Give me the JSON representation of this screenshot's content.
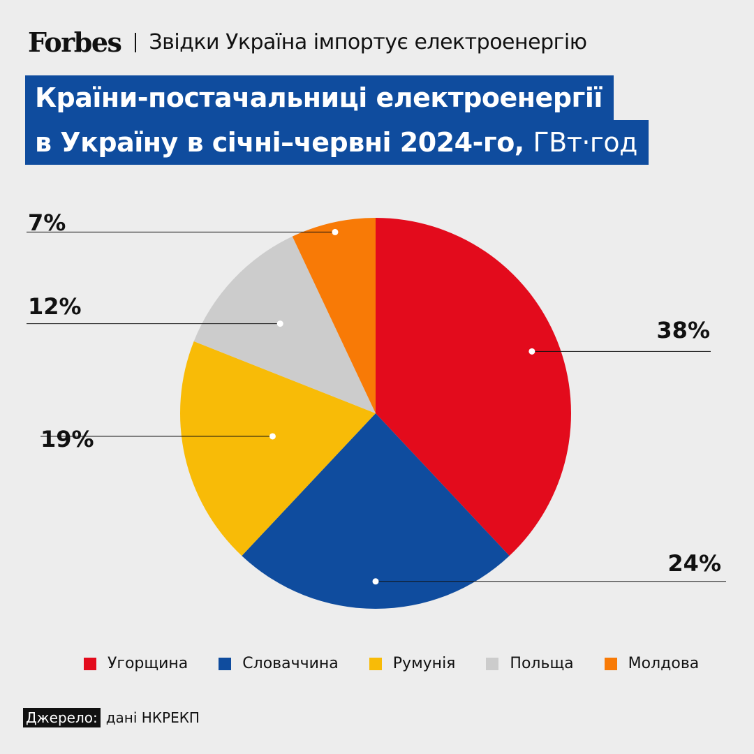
{
  "header": {
    "logo": "Forbes",
    "subtitle": "Звідки Україна імпортує електроенергію"
  },
  "title": {
    "line1": "Країни-постачальниці електроенергії",
    "line2_main": "в Україну в січні–червні 2024-го,",
    "line2_unit": "ГВт·год"
  },
  "chart_data": {
    "type": "pie",
    "categories": [
      "Угорщина",
      "Словаччина",
      "Румунія",
      "Польща",
      "Молдова"
    ],
    "values": [
      38,
      24,
      19,
      12,
      7
    ],
    "labels": [
      "38%",
      "24%",
      "19%",
      "12%",
      "7%"
    ],
    "colors": [
      "#e30b1c",
      "#0f4c9e",
      "#f8bb07",
      "#cccccc",
      "#f87a06"
    ],
    "start": "12 o'clock",
    "direction": "clockwise",
    "legend_position": "bottom"
  },
  "legend": {
    "items": [
      {
        "label": "Угорщина",
        "color": "#e30b1c"
      },
      {
        "label": "Словаччина",
        "color": "#0f4c9e"
      },
      {
        "label": "Румунія",
        "color": "#f8bb07"
      },
      {
        "label": "Польща",
        "color": "#cccccc"
      },
      {
        "label": "Молдова",
        "color": "#f87a06"
      }
    ]
  },
  "source": {
    "label": "Джерело:",
    "text": "дані НКРЕКП"
  }
}
